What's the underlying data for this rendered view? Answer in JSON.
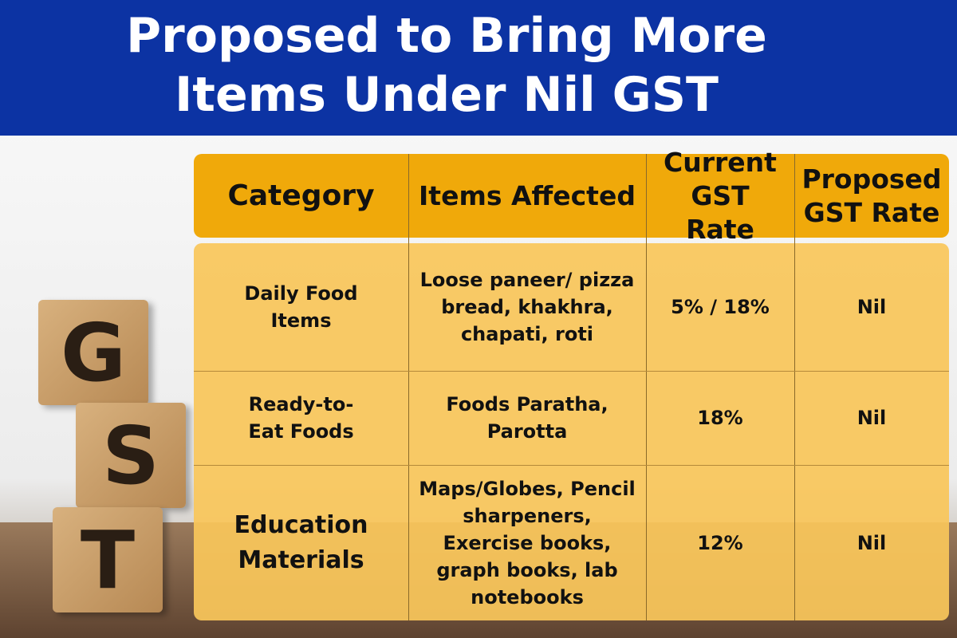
{
  "header": {
    "title": "Proposed to Bring More Items Under Nil GST"
  },
  "image": {
    "blocks": [
      "G",
      "S",
      "T"
    ]
  },
  "table": {
    "columns": [
      "Category",
      "Items Affected",
      "Current GST Rate",
      "Proposed GST Rate"
    ],
    "rows": [
      [
        "Daily Food Items",
        "Loose paneer/ pizza bread, khakhra, chapati, roti",
        "5% / 18%",
        "Nil"
      ],
      [
        "Ready-to- Eat Foods",
        "Foods Paratha, Parotta",
        "18%",
        "Nil"
      ],
      [
        "Education Materials",
        "Maps/Globes, Pencil sharpeners, Exercise books, graph books, lab notebooks",
        "12%",
        "Nil"
      ]
    ]
  }
}
